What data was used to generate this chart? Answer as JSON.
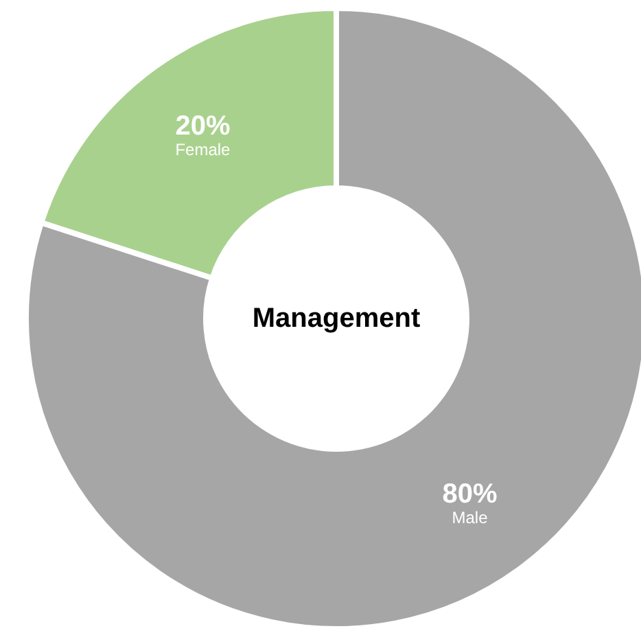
{
  "chart_data": {
    "type": "donut",
    "title": "Management",
    "categories": [
      "Female",
      "Male"
    ],
    "values": [
      20,
      80
    ],
    "colors": [
      "#a9d18e",
      "#a6a6a6"
    ],
    "value_labels": [
      "20%",
      "80%"
    ]
  }
}
